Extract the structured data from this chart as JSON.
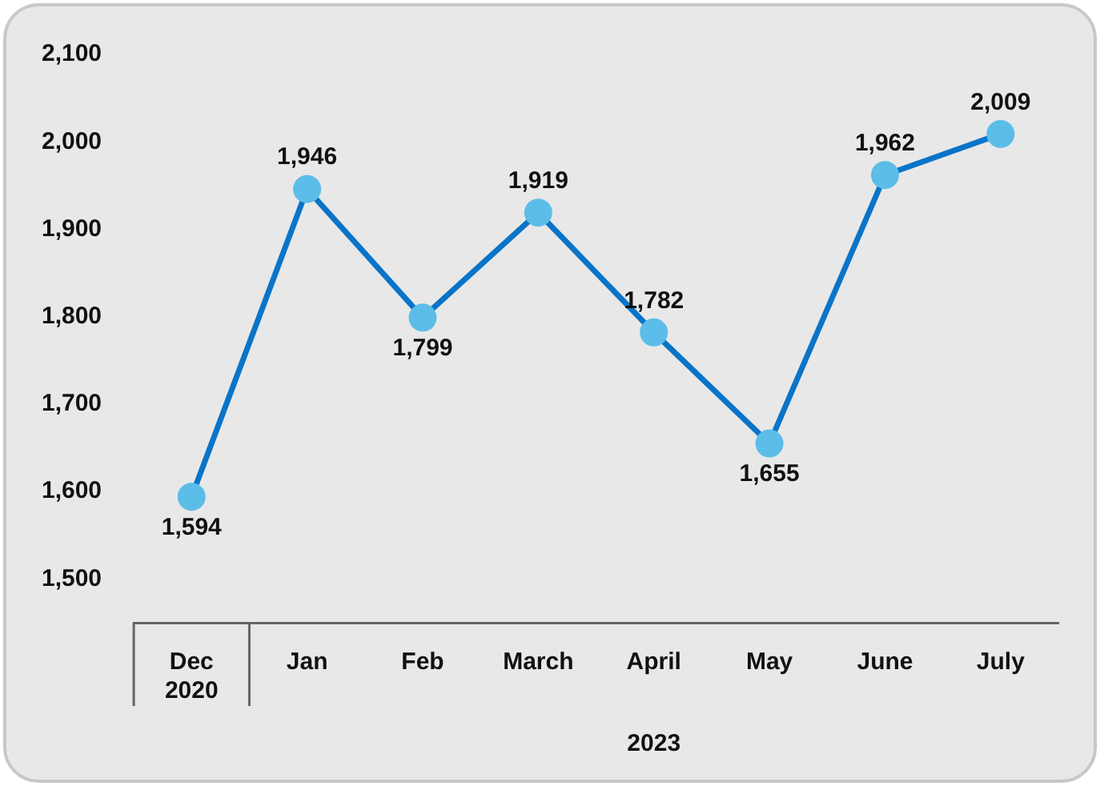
{
  "chart_data": {
    "type": "line",
    "categories": [
      "Dec 2020",
      "Jan",
      "Feb",
      "March",
      "April",
      "May",
      "June",
      "July"
    ],
    "series": [
      {
        "color": "#0a74c8",
        "values": [
          1594,
          1946,
          1799,
          1919,
          1782,
          1655,
          1962,
          2009
        ],
        "value_labels": [
          "1,594",
          "1,946",
          "1,799",
          "1,919",
          "1,782",
          "1,655",
          "1,962",
          "2,009"
        ]
      }
    ],
    "marker": "circle",
    "grid": false,
    "legend": false,
    "ylim": [
      1450,
      2100
    ],
    "yticks": [
      {
        "value": 1500,
        "label": "1,500"
      },
      {
        "value": 1600,
        "label": "1,600"
      },
      {
        "value": 1700,
        "label": "1,700"
      },
      {
        "value": 1800,
        "label": "1,800"
      },
      {
        "value": 1900,
        "label": "1,900"
      },
      {
        "value": 2000,
        "label": "2,000"
      },
      {
        "value": 2100,
        "label": "2,100"
      }
    ],
    "annotations": [
      "2023"
    ]
  }
}
